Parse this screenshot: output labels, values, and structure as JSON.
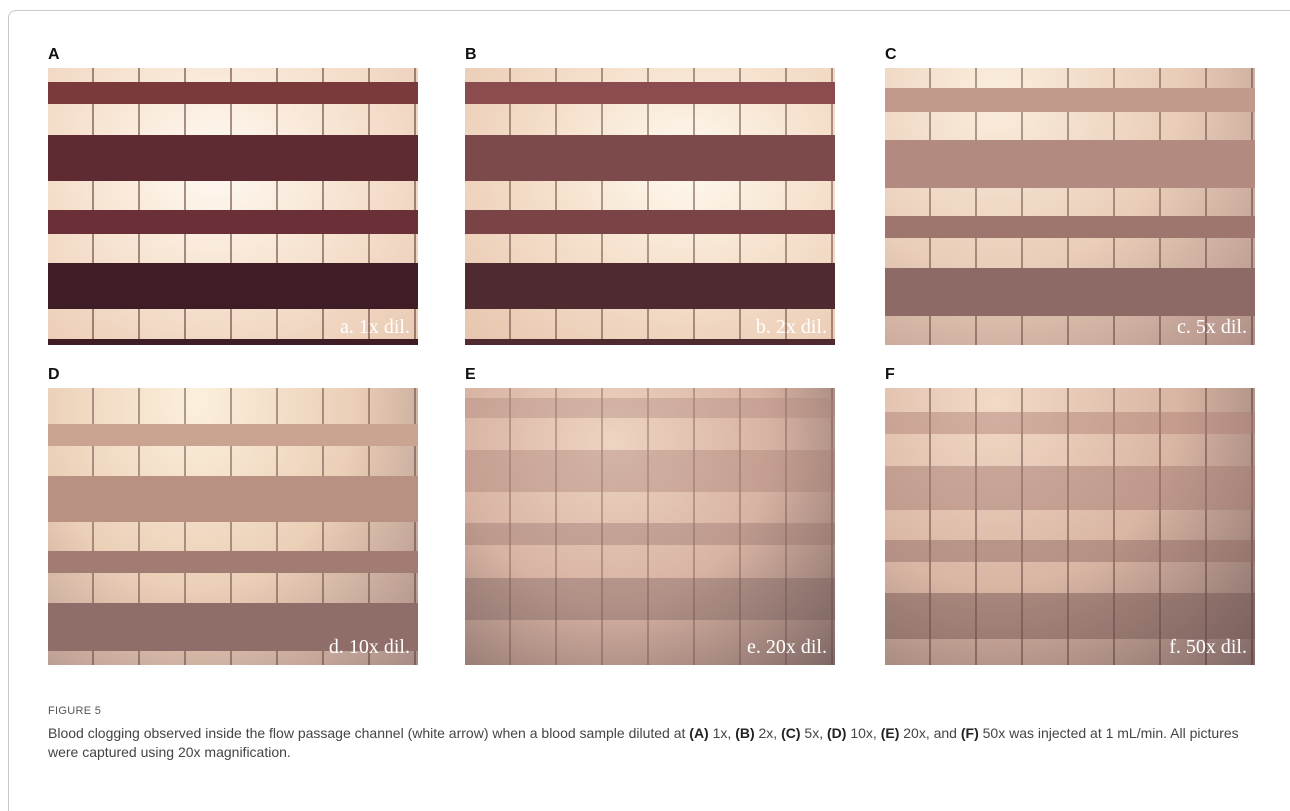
{
  "figure": {
    "panels": [
      {
        "letter": "A",
        "caption": "a. 1x dil."
      },
      {
        "letter": "B",
        "caption": "b. 2x dil."
      },
      {
        "letter": "C",
        "caption": "c. 5x dil."
      },
      {
        "letter": "D",
        "caption": "d. 10x dil."
      },
      {
        "letter": "E",
        "caption": "e. 20x dil."
      },
      {
        "letter": "F",
        "caption": "f. 50x dil."
      }
    ],
    "label": "FIGURE 5",
    "caption": [
      {
        "text": "Blood clogging observed inside the flow passage channel (white arrow) when a blood sample diluted at ",
        "bold": false
      },
      {
        "text": "(A)",
        "bold": true
      },
      {
        "text": " 1x, ",
        "bold": false
      },
      {
        "text": "(B)",
        "bold": true
      },
      {
        "text": " 2x, ",
        "bold": false
      },
      {
        "text": "(C)",
        "bold": true
      },
      {
        "text": " 5x, ",
        "bold": false
      },
      {
        "text": "(D)",
        "bold": true
      },
      {
        "text": " 10x, ",
        "bold": false
      },
      {
        "text": "(E)",
        "bold": true
      },
      {
        "text": " 20x, and ",
        "bold": false
      },
      {
        "text": "(F)",
        "bold": true
      },
      {
        "text": " 50x was injected at 1 mL/min. All pictures were captured using 20x magnification.",
        "bold": false
      }
    ]
  }
}
